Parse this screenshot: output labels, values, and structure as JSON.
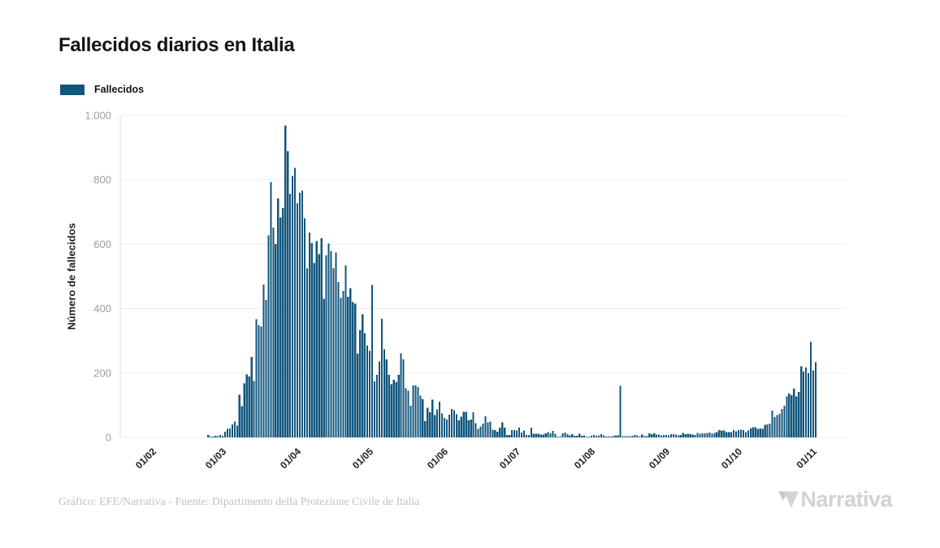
{
  "header": {
    "title": "Fallecidos diarios en Italia"
  },
  "legend": {
    "label": "Fallecidos",
    "color": "#11567D"
  },
  "chart_data": {
    "type": "bar",
    "title": "Fallecidos diarios en Italia",
    "series_name": "Fallecidos",
    "xlabel": "",
    "ylabel": "Número de fallecidos",
    "bar_color": "#11567D",
    "ylim": [
      0,
      1000
    ],
    "yticks": [
      0,
      200,
      400,
      600,
      800,
      1000
    ],
    "ytick_labels": [
      "0",
      "200",
      "400",
      "600",
      "800",
      "1.000"
    ],
    "xtick_labels": [
      "01/02",
      "01/03",
      "01/04",
      "01/05",
      "01/06",
      "01/07",
      "01/08",
      "01/09",
      "01/10",
      "01/11"
    ],
    "grid": true,
    "legend_position": "top-left",
    "start_date": "2020-02-24",
    "end_date": "2020-11-02",
    "values": [
      7,
      3,
      2,
      5,
      4,
      8,
      5,
      18,
      27,
      28,
      41,
      49,
      36,
      133,
      97,
      168,
      196,
      189,
      250,
      175,
      368,
      349,
      345,
      475,
      427,
      627,
      793,
      651,
      601,
      743,
      683,
      712,
      969,
      889,
      756,
      812,
      837,
      727,
      760,
      766,
      681,
      525,
      636,
      604,
      542,
      610,
      570,
      619,
      431,
      566,
      602,
      578,
      525,
      575,
      482,
      433,
      454,
      534,
      437,
      464,
      420,
      415,
      260,
      333,
      382,
      323,
      285,
      269,
      474,
      174,
      195,
      236,
      369,
      274,
      243,
      194,
      165,
      179,
      172,
      195,
      262,
      242,
      153,
      145,
      99,
      162,
      161,
      156,
      130,
      119,
      50,
      92,
      78,
      117,
      70,
      87,
      111,
      75,
      60,
      55,
      71,
      88,
      85,
      72,
      53,
      65,
      79,
      79,
      53,
      56,
      78,
      44,
      26,
      34,
      43,
      66,
      47,
      49,
      24,
      23,
      18,
      30,
      47,
      30,
      8,
      8,
      23,
      23,
      21,
      30,
      15,
      21,
      8,
      8,
      30,
      12,
      12,
      12,
      9,
      9,
      13,
      17,
      13,
      20,
      11,
      3,
      3,
      13,
      15,
      10,
      6,
      10,
      5,
      5,
      11,
      5,
      6,
      3,
      3,
      5,
      8,
      5,
      6,
      10,
      6,
      3,
      2,
      2,
      4,
      6,
      6,
      160,
      4,
      4,
      4,
      4,
      5,
      7,
      6,
      3,
      9,
      4,
      4,
      13,
      10,
      13,
      9,
      9,
      6,
      8,
      8,
      6,
      10,
      10,
      9,
      6,
      8,
      14,
      10,
      12,
      10,
      9,
      7,
      14,
      12,
      13,
      13,
      14,
      15,
      11,
      14,
      17,
      23,
      21,
      22,
      17,
      16,
      16,
      23,
      19,
      23,
      24,
      23,
      16,
      22,
      28,
      31,
      31,
      26,
      28,
      26,
      39,
      41,
      43,
      83,
      63,
      69,
      73,
      89,
      98,
      127,
      136,
      131,
      151,
      128,
      141,
      221,
      205,
      217,
      199,
      297,
      208,
      233
    ]
  },
  "theme": {
    "background": "#FFFFFF",
    "bar_color": "#11567D",
    "grid_color": "#EDEDED",
    "axis_line_color": "#DEDEDE",
    "title_color": "#141414",
    "ytick_color": "#9C9C9C",
    "xtick_color": "#1F1F1F",
    "credit_color": "#C2C2C2",
    "logo_color": "#D2D2D2"
  },
  "footer": {
    "credit": "Gráfico: EFE/Narrativa - Fuente: Dipartimento della Protezione Civile de Italia",
    "logo_text": "Narrativa"
  }
}
